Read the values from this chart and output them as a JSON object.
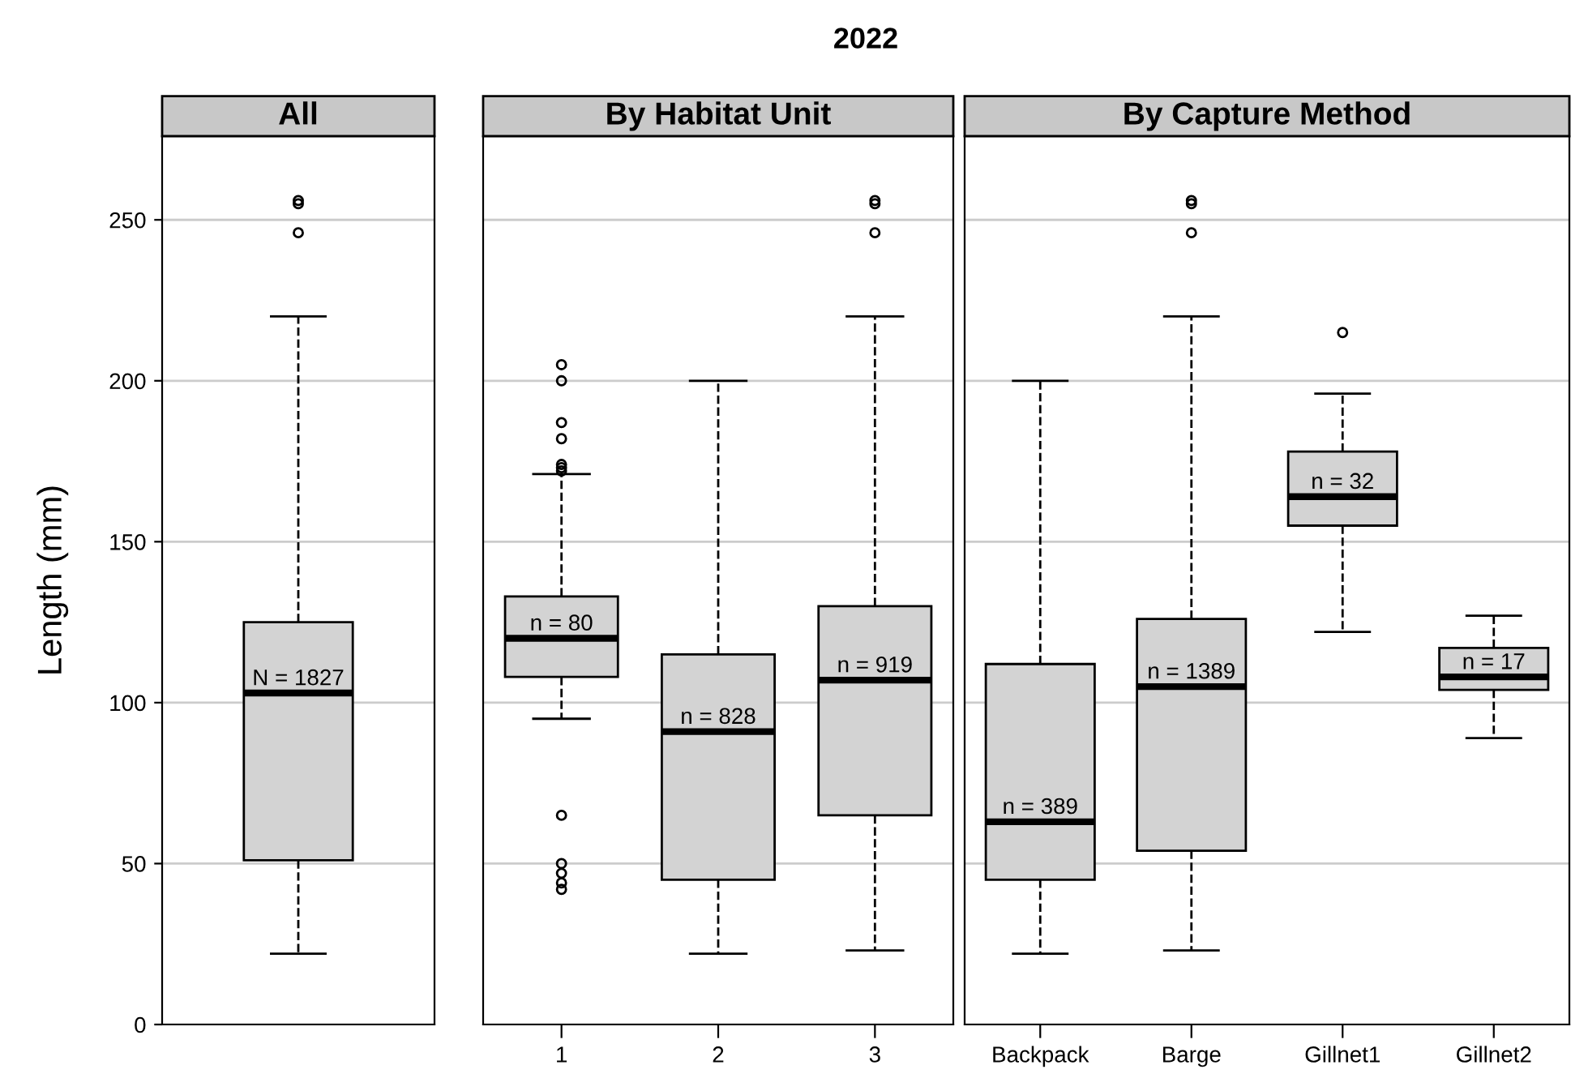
{
  "chart_data": [
    {
      "type": "box",
      "title": "All",
      "ylabel": "Length (mm)",
      "categories": [
        null
      ],
      "ylim": [
        0,
        276
      ],
      "yticks": [
        0,
        50,
        100,
        150,
        200,
        250
      ],
      "grid": "y",
      "tick_labels": "y",
      "marker": "circle",
      "line_style": "dashed",
      "color": "#d3d3d3",
      "boxes": [
        {
          "low": 22,
          "q1": 51,
          "median": 103,
          "q3": 125,
          "high": 220,
          "outliers": [
            256,
            255,
            246
          ]
        }
      ],
      "annotations": [
        "2022",
        {
          "text": "N = 1827",
          "y": 103
        }
      ]
    },
    {
      "type": "box",
      "title": "By Habitat Unit",
      "categories": [
        "1",
        "2",
        "3"
      ],
      "ylim": [
        0,
        276
      ],
      "grid": "y",
      "tick_labels": "x",
      "marker": "circle",
      "line_style": "dashed",
      "color": "#d3d3d3",
      "boxes": [
        {
          "low": 95,
          "q1": 108,
          "median": 120,
          "q3": 133,
          "high": 171,
          "outliers": [
            205,
            200,
            187,
            182,
            174,
            173,
            172,
            65,
            50,
            47,
            44,
            42
          ]
        },
        {
          "low": 22,
          "q1": 45,
          "median": 91,
          "q3": 115,
          "high": 200
        },
        {
          "low": 23,
          "q1": 65,
          "median": 107,
          "q3": 130,
          "high": 220,
          "outliers": [
            256,
            255,
            246
          ]
        }
      ],
      "annotations": [
        {
          "text": "n = 80",
          "x": "1",
          "y": 120
        },
        {
          "text": "n = 828",
          "x": "2",
          "y": 91
        },
        {
          "text": "n = 919",
          "x": "3",
          "y": 107
        }
      ]
    },
    {
      "type": "box",
      "title": "By Capture Method",
      "categories": [
        "Backpack",
        "Barge",
        "Gillnet1",
        "Gillnet2"
      ],
      "ylim": [
        0,
        276
      ],
      "grid": "y",
      "tick_labels": "x",
      "marker": "circle",
      "line_style": "dashed",
      "color": "#d3d3d3",
      "boxes": [
        {
          "low": 22,
          "q1": 45,
          "median": 63,
          "q3": 112,
          "high": 200
        },
        {
          "low": 23,
          "q1": 54,
          "median": 105,
          "q3": 126,
          "high": 220,
          "outliers": [
            256,
            255,
            246
          ]
        },
        {
          "low": 122,
          "q1": 155,
          "median": 164,
          "q3": 178,
          "high": 196,
          "outliers": [
            215
          ]
        },
        {
          "low": 89,
          "q1": 104,
          "median": 108,
          "q3": 117,
          "high": 127
        }
      ],
      "annotations": [
        {
          "text": "n = 389",
          "x": "Backpack",
          "y": 63
        },
        {
          "text": "n = 1389",
          "x": "Barge",
          "y": 105
        },
        {
          "text": "n = 32",
          "x": "Gillnet1",
          "y": 164
        },
        {
          "text": "n = 17",
          "x": "Gillnet2",
          "y": 108
        }
      ]
    }
  ]
}
